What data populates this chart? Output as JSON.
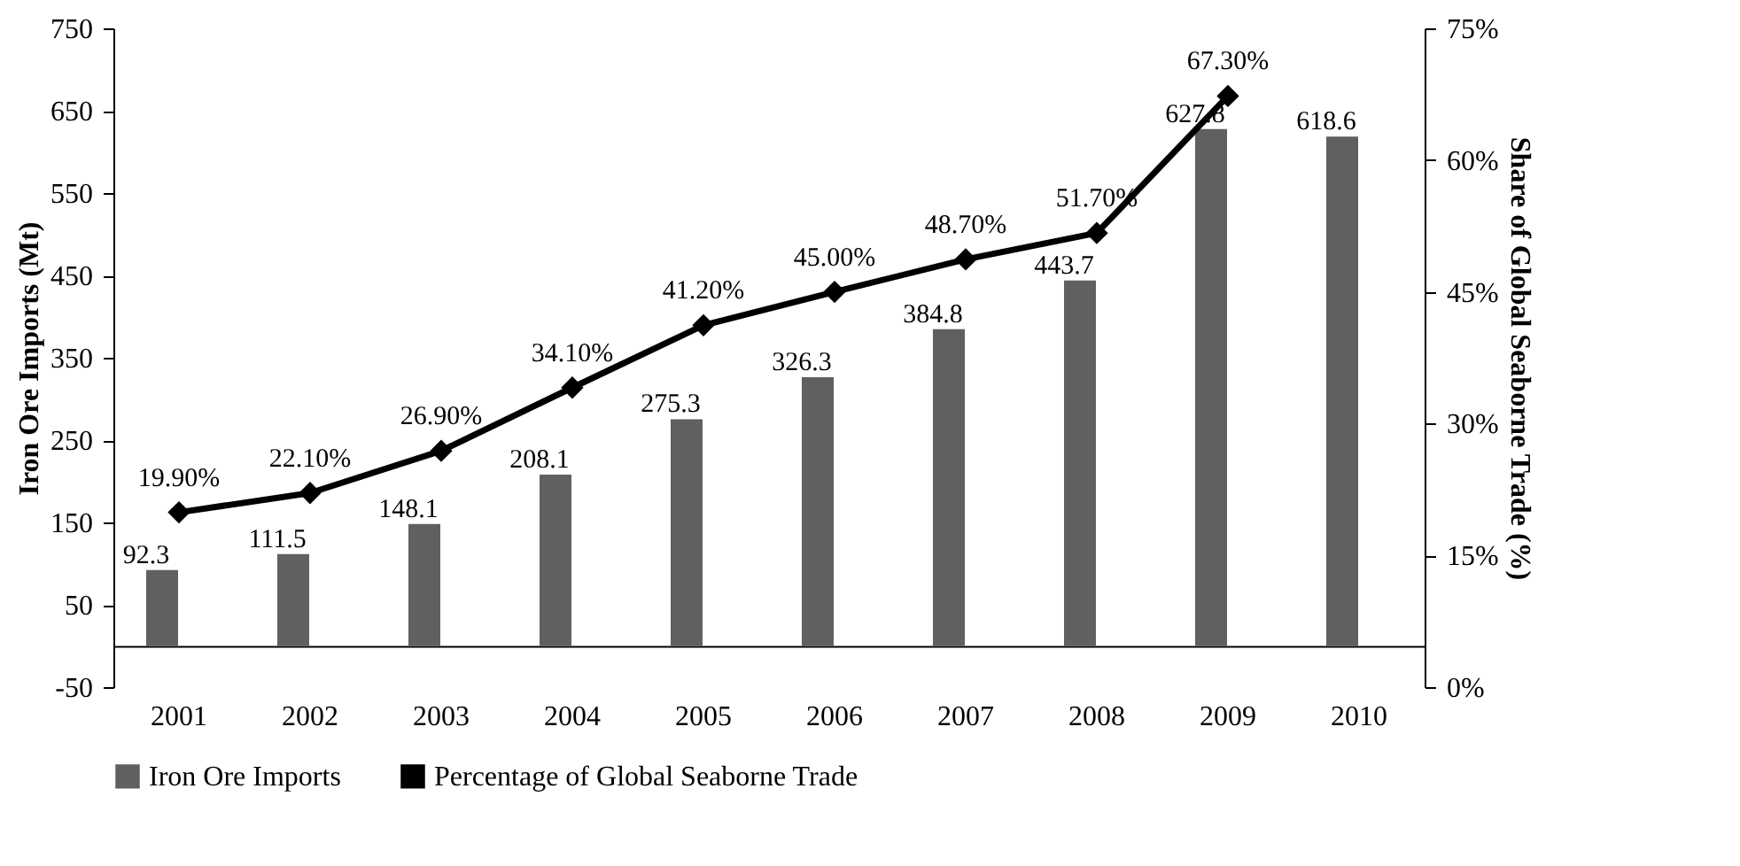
{
  "chart_data": {
    "type": "bar",
    "categories": [
      "2001",
      "2002",
      "2003",
      "2004",
      "2005",
      "2006",
      "2007",
      "2008",
      "2009",
      "2010"
    ],
    "ylabel": "Iron Ore Imports (Mt)",
    "y2label": "Share of Global Seaborne Trade (%)",
    "ylim": [
      -50,
      750
    ],
    "yticks": [
      -50,
      50,
      150,
      250,
      350,
      450,
      550,
      650,
      750
    ],
    "y2lim": [
      0,
      75
    ],
    "y2ticks": [
      {
        "value": 0,
        "label": "0%"
      },
      {
        "value": 15,
        "label": "15%"
      },
      {
        "value": 30,
        "label": "30%"
      },
      {
        "value": 45,
        "label": "45%"
      },
      {
        "value": 60,
        "label": "60%"
      },
      {
        "value": 75,
        "label": "75%"
      }
    ],
    "series": [
      {
        "name": "Iron Ore Imports",
        "color": "#606060",
        "values": [
          92.3,
          111.5,
          148.1,
          208.1,
          275.3,
          326.3,
          384.8,
          443.7,
          627.8,
          618.6
        ],
        "value_labels": [
          "92.3",
          "111.5",
          "148.1",
          "208.1",
          "275.3",
          "326.3",
          "384.8",
          "443.7",
          "627.8",
          "618.6"
        ]
      },
      {
        "name": "Percentage of Global Seaborne Trade",
        "type": "line",
        "axis": "y2",
        "color": "#000000",
        "marker": "diamond",
        "values": [
          19.9,
          22.1,
          26.9,
          34.1,
          41.2,
          45.0,
          48.7,
          51.7,
          67.3,
          null
        ],
        "value_labels": [
          "19.90%",
          "22.10%",
          "26.90%",
          "34.10%",
          "41.20%",
          "45.00%",
          "48.70%",
          "51.70%",
          "67.30%",
          null
        ]
      }
    ],
    "legend": "bottom",
    "grid": false
  }
}
